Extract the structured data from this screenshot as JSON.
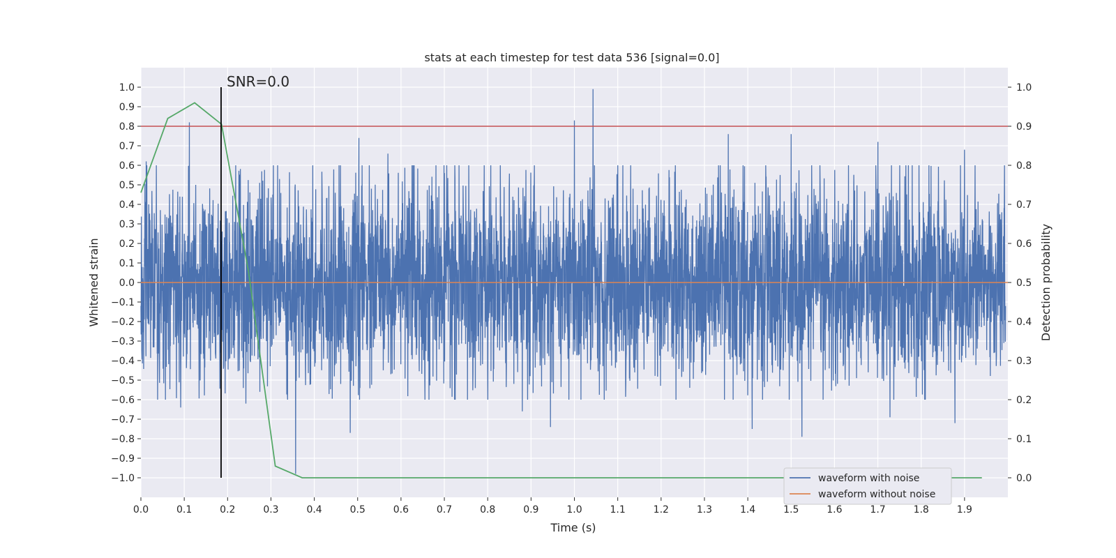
{
  "chart_data": {
    "type": "line",
    "title": "stats at each timestep for test data 536 [signal=0.0]",
    "xlabel": "Time (s)",
    "ylabel": "Whitened strain",
    "y2label": "Detection probability",
    "xlim": [
      0.0,
      2.0
    ],
    "ylim": [
      -1.1,
      1.1
    ],
    "y2lim": [
      -0.05,
      1.05
    ],
    "grid": true,
    "x_ticks": [
      "0.0",
      "0.1",
      "0.2",
      "0.3",
      "0.4",
      "0.5",
      "0.6",
      "0.7",
      "0.8",
      "0.9",
      "1.0",
      "1.1",
      "1.2",
      "1.3",
      "1.4",
      "1.5",
      "1.6",
      "1.7",
      "1.8",
      "1.9"
    ],
    "y_ticks": [
      "1.0",
      "0.9",
      "0.8",
      "0.7",
      "0.6",
      "0.5",
      "0.4",
      "0.3",
      "0.2",
      "0.1",
      "0.0",
      "−0.1",
      "−0.2",
      "−0.3",
      "−0.4",
      "−0.5",
      "−0.6",
      "−0.7",
      "−0.8",
      "−0.9",
      "−1.0"
    ],
    "y2_ticks": [
      "1.0",
      "0.9",
      "0.8",
      "0.7",
      "0.6",
      "0.5",
      "0.4",
      "0.3",
      "0.2",
      "0.1",
      "0.0"
    ],
    "annotation": {
      "text": "SNR=0.0",
      "x": 0.185,
      "y": 1.0
    },
    "vertical_line": {
      "x": 0.185,
      "y_from": -1.0,
      "y_to": 1.0,
      "color": "#000000"
    },
    "threshold_line": {
      "y2": 0.9,
      "color": "#c44e52"
    },
    "noise_series": {
      "name": "waveform with noise",
      "color": "#4c72b0",
      "sample_rate": 2048,
      "amplitude_std": 0.25,
      "peak_samples": [
        {
          "x": 0.012,
          "y": 0.62
        },
        {
          "x": 0.092,
          "y": -0.64
        },
        {
          "x": 0.112,
          "y": 0.82
        },
        {
          "x": 0.242,
          "y": -0.62
        },
        {
          "x": 0.32,
          "y": 0.53
        },
        {
          "x": 0.357,
          "y": -0.98
        },
        {
          "x": 0.483,
          "y": -0.77
        },
        {
          "x": 0.503,
          "y": 0.74
        },
        {
          "x": 0.57,
          "y": 0.66
        },
        {
          "x": 0.88,
          "y": -0.66
        },
        {
          "x": 0.945,
          "y": -0.74
        },
        {
          "x": 1.0,
          "y": 0.83
        },
        {
          "x": 1.043,
          "y": 0.99
        },
        {
          "x": 1.355,
          "y": 0.76
        },
        {
          "x": 1.41,
          "y": -0.75
        },
        {
          "x": 1.5,
          "y": 0.76
        },
        {
          "x": 1.525,
          "y": -0.79
        },
        {
          "x": 1.7,
          "y": 0.72
        },
        {
          "x": 1.728,
          "y": -0.69
        },
        {
          "x": 1.878,
          "y": -0.72
        },
        {
          "x": 1.9,
          "y": 0.68
        }
      ]
    },
    "clean_series": {
      "name": "waveform without noise",
      "color": "#dd8452",
      "y": 0.0
    },
    "probability_series": {
      "name": "detection probability",
      "color": "#55a868",
      "x": [
        0.0,
        0.062,
        0.124,
        0.186,
        0.248,
        0.31,
        0.372,
        0.434,
        0.5,
        1.0,
        1.5,
        1.94
      ],
      "y": [
        0.73,
        0.92,
        0.96,
        0.905,
        0.53,
        0.03,
        0.0,
        0.0,
        0.0,
        0.0,
        0.0,
        0.0
      ]
    },
    "legend": {
      "position": "lower-right",
      "entries": [
        {
          "label": "waveform with noise",
          "color": "#4c72b0"
        },
        {
          "label": "waveform without noise",
          "color": "#dd8452"
        }
      ]
    }
  }
}
